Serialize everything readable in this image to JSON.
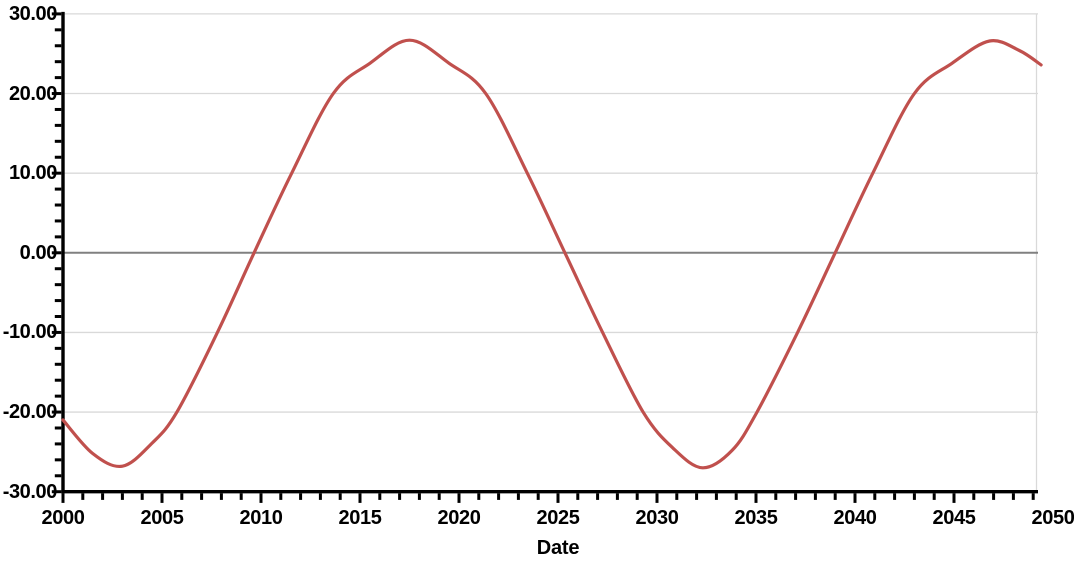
{
  "chart_data": {
    "type": "line",
    "xlabel": "Date",
    "xlim": [
      2000,
      2049.25
    ],
    "ylim": [
      -30,
      30
    ],
    "x_major_tick_years": [
      2000,
      2005,
      2010,
      2015,
      2020,
      2025,
      2030,
      2035,
      2040,
      2045,
      2050
    ],
    "x_tick_labels": [
      "2000",
      "2005",
      "2010",
      "2015",
      "2020",
      "2025",
      "2030",
      "2035",
      "2040",
      "2045",
      "2050"
    ],
    "x_minor_step": 1,
    "y_major_tick_values": [
      30,
      20,
      10,
      0,
      -10,
      -20,
      -30
    ],
    "y_tick_labels": [
      "30.00",
      "20.00",
      "10.00",
      "0.00",
      "-10.00",
      "-20.00",
      "-30.00"
    ],
    "y_minor_step": 2,
    "grid": "horizontal-major-on",
    "legend": "none",
    "zero_line": true,
    "colors": {
      "line": "#C0504D",
      "grid": "#D9D9D9",
      "zero_line": "#808080",
      "axis": "#000000",
      "text": "#000000",
      "background": "#FFFFFF"
    },
    "series": [
      {
        "points": [
          [
            2000.0,
            -21.0
          ],
          [
            2001.5,
            -25.2
          ],
          [
            2003.0,
            -26.8
          ],
          [
            2004.5,
            -23.9
          ],
          [
            2005.75,
            -20.0
          ],
          [
            2007.8,
            -10.0
          ],
          [
            2009.65,
            0.0
          ],
          [
            2011.55,
            10.0
          ],
          [
            2013.65,
            20.0
          ],
          [
            2015.5,
            23.8
          ],
          [
            2017.5,
            26.7
          ],
          [
            2019.5,
            23.8
          ],
          [
            2021.35,
            20.0
          ],
          [
            2023.45,
            10.0
          ],
          [
            2025.35,
            0.0
          ],
          [
            2027.25,
            -10.0
          ],
          [
            2029.3,
            -20.0
          ],
          [
            2030.8,
            -24.5
          ],
          [
            2032.3,
            -27.0
          ],
          [
            2033.8,
            -24.8
          ],
          [
            2035.05,
            -20.0
          ],
          [
            2037.1,
            -10.0
          ],
          [
            2039.0,
            0.0
          ],
          [
            2040.9,
            10.0
          ],
          [
            2043.0,
            20.0
          ],
          [
            2044.9,
            23.8
          ],
          [
            2046.8,
            26.6
          ],
          [
            2048.3,
            25.4
          ],
          [
            2049.4,
            23.6
          ]
        ]
      }
    ]
  }
}
